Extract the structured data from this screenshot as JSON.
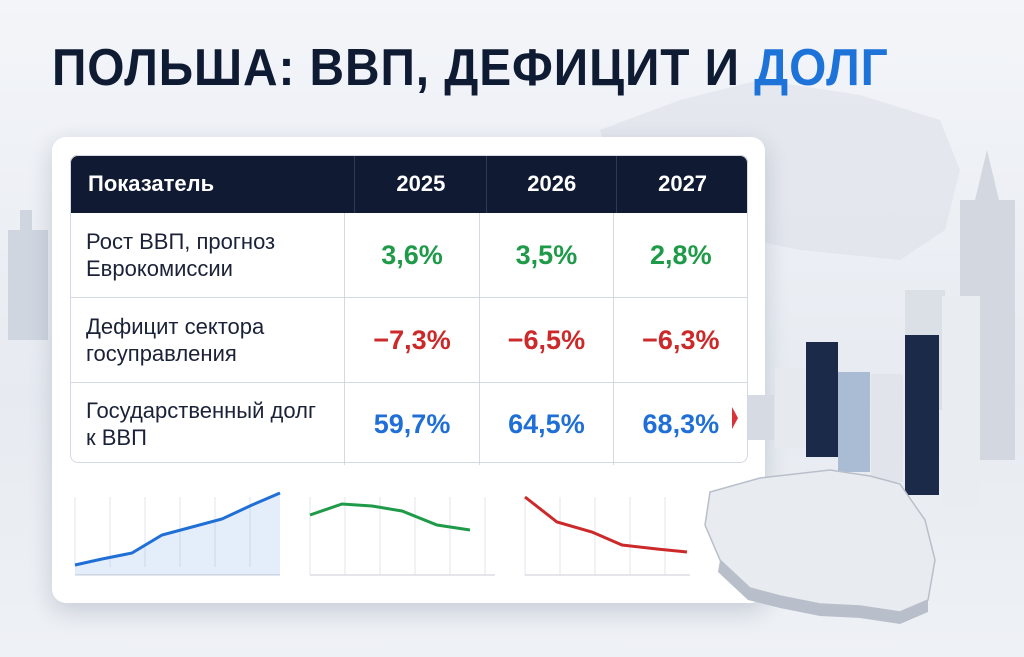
{
  "title": {
    "main": "ПОЛЬША: ВВП, ДЕФИЦИТ И",
    "highlight": "ДОЛГ"
  },
  "table": {
    "header": [
      "Показатель",
      "2025",
      "2026",
      "2027"
    ],
    "rows": [
      [
        "Рост ВВП, прогноз Еврокомиссии",
        "3,6%",
        "3,5%",
        "2,8%"
      ],
      [
        "Дефицит сектора госуправления",
        "−7,3%",
        "−6,5%",
        "−6,3%"
      ],
      [
        "Государственный долг к ВВП",
        "59,7%",
        "64,5%",
        "68,3%"
      ]
    ],
    "row_colors": [
      "#1f9a48",
      "#cc2a2a",
      "#1f6fd6"
    ]
  }
}
